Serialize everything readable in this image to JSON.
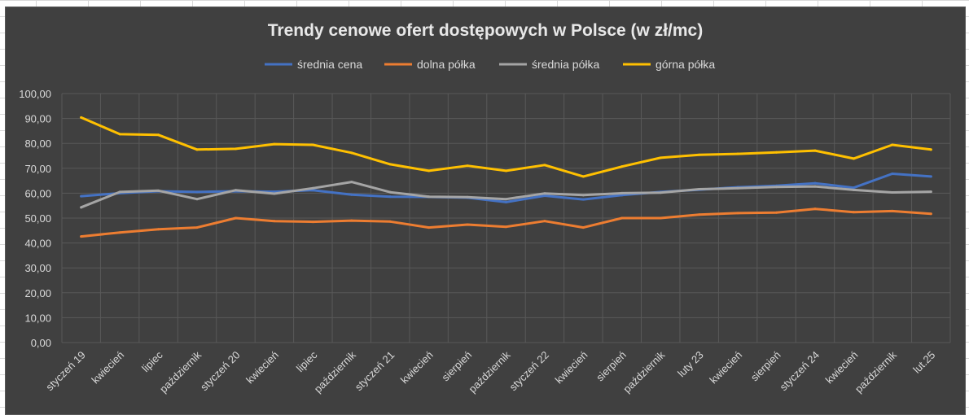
{
  "chart_data": {
    "type": "line",
    "title": "Trendy cenowe ofert dostępowych w Polsce (w zł/mc)",
    "xlabel": "",
    "ylabel": "",
    "ylim": [
      0,
      100
    ],
    "y_ticks": [
      "0,00",
      "10,00",
      "20,00",
      "30,00",
      "40,00",
      "50,00",
      "60,00",
      "70,00",
      "80,00",
      "90,00",
      "100,00"
    ],
    "grid": true,
    "legend_position": "top",
    "categories": [
      "styczeń 19",
      "kwiecień",
      "lipiec",
      "październik",
      "styczeń 20",
      "kwiecień",
      "lipiec",
      "październik",
      "styczeń 21",
      "kwiecień",
      "sierpień",
      "październik",
      "styczeń 22",
      "kwiecień",
      "sierpień",
      "październik",
      "luty 23",
      "kwiecień",
      "sierpień",
      "styczeń 24",
      "kwiecień",
      "październik",
      "lut.25"
    ],
    "series": [
      {
        "name": "średnia cena",
        "color": "#4472c4",
        "values": [
          58.8,
          60.0,
          60.8,
          60.5,
          60.8,
          60.6,
          61.2,
          59.4,
          58.6,
          58.5,
          58.2,
          56.4,
          59.0,
          57.5,
          59.2,
          60.5,
          61.4,
          62.4,
          63.0,
          64.0,
          62.2,
          67.8,
          66.7
        ]
      },
      {
        "name": "dolna półka",
        "color": "#ed7d31",
        "values": [
          42.6,
          44.2,
          45.5,
          46.2,
          50.0,
          48.8,
          48.5,
          49.0,
          48.6,
          46.2,
          47.4,
          46.5,
          48.8,
          46.2,
          50.0,
          50.0,
          51.4,
          52.0,
          52.2,
          53.7,
          52.4,
          52.8,
          51.7
        ]
      },
      {
        "name": "średnia półka",
        "color": "#a5a5a5",
        "values": [
          54.3,
          60.5,
          61.0,
          57.6,
          61.2,
          59.8,
          62.0,
          64.5,
          60.4,
          58.6,
          58.4,
          57.6,
          59.9,
          59.2,
          60.0,
          60.2,
          61.6,
          62.0,
          62.5,
          62.7,
          61.3,
          60.3,
          60.6
        ]
      },
      {
        "name": "górna półka",
        "color": "#ffc000",
        "values": [
          90.4,
          83.7,
          83.4,
          77.5,
          77.8,
          79.7,
          79.4,
          76.2,
          71.6,
          69.0,
          71.0,
          69.0,
          71.3,
          66.7,
          70.7,
          74.2,
          75.4,
          75.8,
          76.4,
          77.1,
          73.9,
          79.4,
          77.5
        ]
      }
    ]
  },
  "colors": {
    "chart_background": "#404040",
    "gridline": "#595959",
    "text": "#d9d9d9",
    "title_text": "#e8e8e8"
  }
}
